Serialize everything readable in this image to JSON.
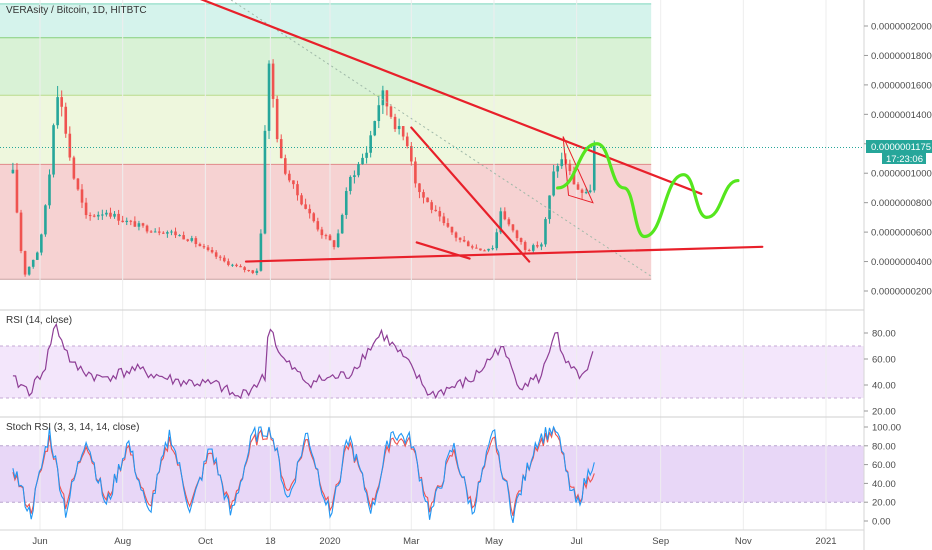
{
  "header": {
    "title": "VERAsity / Bitcoin, 1D, HITBTC"
  },
  "price_scale": {
    "tick_labels": [
      "0.0000002000",
      "0.0000001800",
      "0.0000001600",
      "0.0000001400",
      "0.0000001200",
      "0.0000001000",
      "0.0000000800",
      "0.0000000600",
      "0.0000000400",
      "0.0000000200"
    ],
    "last_price": "0.0000001175",
    "countdown": "17:23:06"
  },
  "time_axis": {
    "labels": [
      "Jun",
      "Aug",
      "Oct",
      "18",
      "2020",
      "Mar",
      "May",
      "Jul",
      "Sep",
      "Nov",
      "2021"
    ]
  },
  "rsi": {
    "title": "RSI (14, close)",
    "tick_labels": [
      "80.00",
      "60.00",
      "40.00",
      "20.00"
    ]
  },
  "stoch": {
    "title": "Stoch RSI (3, 3, 14, 14, close)",
    "tick_labels": [
      "100.00",
      "80.00",
      "60.00",
      "40.00",
      "20.00",
      "0.00"
    ]
  },
  "colors": {
    "candle_up": "#26a69a",
    "candle_down": "#ef5350",
    "trend_line": "#e8202a",
    "projection": "#55e61e",
    "rsi_line": "#8e3e96",
    "stoch_k": "#2196f3",
    "stoch_d": "#ef5350",
    "last_price_label": "#26a69a"
  },
  "chart_data": [
    {
      "type": "candlestick",
      "title": "VERAsity / Bitcoin, 1D, HITBTC",
      "ylim": [
        1.5e-08,
        2.15e-07
      ],
      "x_range": [
        "2019-05-10",
        "2021-01-31"
      ],
      "last_value": 1.175e-07,
      "series": [
        {
          "name": "close",
          "x": [
            "2019-05-12",
            "2019-05-20",
            "2019-06-01",
            "2019-06-08",
            "2019-06-13",
            "2019-06-18",
            "2019-06-25",
            "2019-07-05",
            "2019-07-20",
            "2019-08-01",
            "2019-08-20",
            "2019-09-05",
            "2019-09-20",
            "2019-10-01",
            "2019-10-15",
            "2019-10-25",
            "2019-11-05",
            "2019-11-10",
            "2019-11-16",
            "2019-11-20",
            "2019-11-25",
            "2019-12-05",
            "2019-12-15",
            "2019-12-25",
            "2020-01-05",
            "2020-01-15",
            "2020-01-28",
            "2020-02-08",
            "2020-02-14",
            "2020-02-20",
            "2020-02-28",
            "2020-03-05",
            "2020-03-13",
            "2020-03-25",
            "2020-04-05",
            "2020-04-20",
            "2020-05-01",
            "2020-05-06",
            "2020-05-15",
            "2020-05-25",
            "2020-06-05",
            "2020-06-15",
            "2020-06-22",
            "2020-06-28",
            "2020-07-03",
            "2020-07-08",
            "2020-07-11",
            "2020-07-14"
          ],
          "values": [
            1e-07,
            3e-08,
            5e-08,
            1e-07,
            1.6e-07,
            1.4e-07,
            1e-07,
            7e-08,
            7.4e-08,
            6.8e-08,
            6.2e-08,
            6e-08,
            5.5e-08,
            4.8e-08,
            4e-08,
            3.6e-08,
            3.3e-08,
            3.5e-08,
            1.8e-07,
            1.5e-07,
            1.1e-07,
            9e-08,
            7.5e-08,
            6e-08,
            5e-08,
            9.5e-08,
            1.15e-07,
            1.55e-07,
            1.42e-07,
            1.3e-07,
            1.2e-07,
            9e-08,
            8e-08,
            6.5e-08,
            5.5e-08,
            4.8e-08,
            5e-08,
            7.5e-08,
            6e-08,
            4.8e-08,
            5.2e-08,
            1.05e-07,
            1.1e-07,
            9.5e-08,
            8.8e-08,
            8.5e-08,
            9e-08,
            1.175e-07
          ]
        }
      ],
      "annotations": [
        {
          "type": "descending-trendline",
          "from": [
            "2019-07-01",
            2.5e-07
          ],
          "to": [
            "2020-10-01",
            8.6e-08
          ]
        },
        {
          "type": "support-line",
          "from": [
            "2019-10-31",
            4e-08
          ],
          "to": [
            "2020-11-15",
            5e-08
          ]
        },
        {
          "type": "falling-wedge-upper",
          "from": [
            "2020-03-01",
            1.31e-07
          ],
          "to": [
            "2020-05-27",
            4e-08
          ]
        },
        {
          "type": "falling-wedge-lower",
          "from": [
            "2020-03-05",
            5.3e-08
          ],
          "to": [
            "2020-04-13",
            4.2e-08
          ]
        },
        {
          "type": "flag",
          "points": [
            [
              "2020-06-21",
              1.25e-07
            ],
            [
              "2020-07-13",
              8e-08
            ],
            [
              "2020-06-25",
              8.5e-08
            ]
          ]
        },
        {
          "type": "projection-path",
          "points": [
            [
              "2020-06-17",
              9e-08
            ],
            [
              "2020-07-16",
              1.2e-07
            ],
            [
              "2020-08-05",
              9e-08
            ],
            [
              "2020-08-20",
              5.7e-08
            ],
            [
              "2020-09-18",
              9.9e-08
            ],
            [
              "2020-10-05",
              7e-08
            ],
            [
              "2020-10-28",
              9.5e-08
            ]
          ]
        }
      ],
      "fib_levels": [
        2.15e-07,
        1.92e-07,
        1.53e-07,
        1.06e-07,
        2.8e-08
      ]
    },
    {
      "type": "line",
      "title": "RSI (14, close)",
      "ylim": [
        18,
        92
      ],
      "band": [
        30,
        70
      ],
      "series": [
        {
          "name": "RSI",
          "x": [
            "2019-05-12",
            "2019-05-25",
            "2019-06-05",
            "2019-06-12",
            "2019-06-25",
            "2019-07-15",
            "2019-08-10",
            "2019-09-10",
            "2019-10-10",
            "2019-10-25",
            "2019-11-14",
            "2019-11-17",
            "2019-11-25",
            "2019-12-15",
            "2020-01-15",
            "2020-02-08",
            "2020-02-25",
            "2020-03-15",
            "2020-04-15",
            "2020-05-06",
            "2020-05-20",
            "2020-06-05",
            "2020-06-16",
            "2020-06-19",
            "2020-06-28",
            "2020-07-08",
            "2020-07-14"
          ],
          "values": [
            44,
            35,
            55,
            87,
            55,
            45,
            52,
            43,
            40,
            30,
            46,
            90,
            62,
            42,
            48,
            80,
            60,
            32,
            44,
            70,
            40,
            46,
            86,
            63,
            50,
            46,
            67
          ]
        }
      ]
    },
    {
      "type": "line",
      "title": "Stoch RSI (3, 3, 14, 14, close)",
      "ylim": [
        -8,
        105
      ],
      "band": [
        20,
        80
      ],
      "series": [
        {
          "name": "K",
          "x": [
            "2019-05-12",
            "2019-05-25",
            "2019-06-08",
            "2019-06-20",
            "2019-07-05",
            "2019-07-20",
            "2019-08-05",
            "2019-08-20",
            "2019-09-05",
            "2019-09-20",
            "2019-10-05",
            "2019-10-20",
            "2019-11-05",
            "2019-11-18",
            "2019-12-01",
            "2019-12-15",
            "2020-01-01",
            "2020-01-15",
            "2020-02-01",
            "2020-02-15",
            "2020-03-01",
            "2020-03-15",
            "2020-04-01",
            "2020-04-15",
            "2020-05-01",
            "2020-05-15",
            "2020-06-01",
            "2020-06-15",
            "2020-07-01",
            "2020-07-14"
          ],
          "values": [
            60,
            5,
            95,
            10,
            90,
            15,
            85,
            5,
            95,
            10,
            80,
            5,
            90,
            100,
            20,
            95,
            5,
            90,
            10,
            95,
            85,
            5,
            80,
            10,
            95,
            5,
            85,
            100,
            15,
            68
          ]
        },
        {
          "name": "D",
          "x": [
            "2019-05-12",
            "2019-05-25",
            "2019-06-08",
            "2019-06-20",
            "2019-07-05",
            "2019-07-20",
            "2019-08-05",
            "2019-08-20",
            "2019-09-05",
            "2019-09-20",
            "2019-10-05",
            "2019-10-20",
            "2019-11-05",
            "2019-11-18",
            "2019-12-01",
            "2019-12-15",
            "2020-01-01",
            "2020-01-15",
            "2020-02-01",
            "2020-02-15",
            "2020-03-01",
            "2020-03-15",
            "2020-04-01",
            "2020-04-15",
            "2020-05-01",
            "2020-05-15",
            "2020-06-01",
            "2020-06-15",
            "2020-07-01",
            "2020-07-14"
          ],
          "values": [
            55,
            10,
            88,
            18,
            84,
            20,
            80,
            12,
            88,
            16,
            75,
            12,
            84,
            96,
            28,
            88,
            12,
            84,
            16,
            88,
            82,
            12,
            74,
            16,
            88,
            12,
            80,
            96,
            20,
            55
          ]
        }
      ]
    }
  ]
}
